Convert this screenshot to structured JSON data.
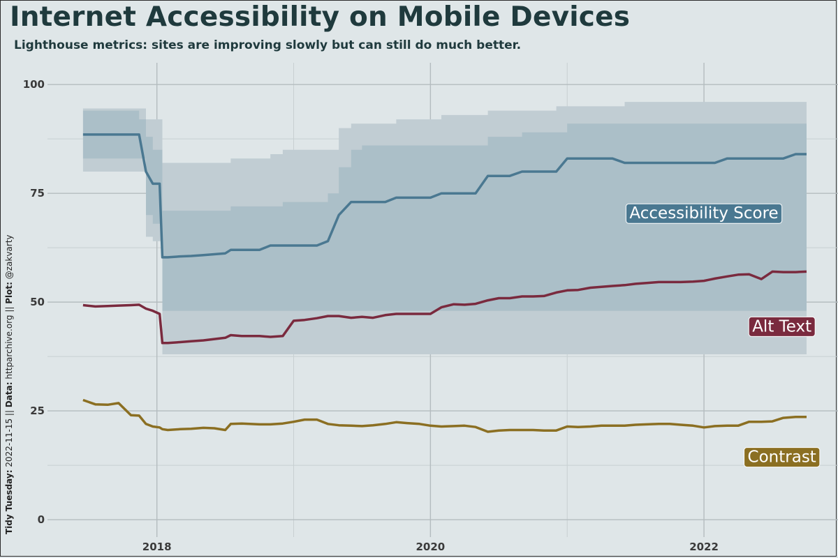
{
  "header": {
    "title": "Internet Accessibility on Mobile Devices",
    "subtitle": "Lighthouse metrics: sites are improving slowly but can still do much better."
  },
  "caption": {
    "tidy_label": "Tidy Tuesday:",
    "tidy_value": " 2022-11-15 || ",
    "data_label": "Data:",
    "data_value": " httparchive.org || ",
    "plot_label": "Plot:",
    "plot_value": " @zakvarty"
  },
  "colors": {
    "background": "#dfe6e8",
    "grid_major": "#b4bcbf",
    "grid_minor": "#c8d0d2",
    "band_outer": "#c1cdd3",
    "band_inner": "#a7bcc6",
    "accessibility": "#4a7891",
    "alt_text": "#7a2a3e",
    "contrast": "#8b6f22"
  },
  "chart_data": {
    "type": "line",
    "title": "Internet Accessibility on Mobile Devices",
    "subtitle": "Lighthouse metrics: sites are improving slowly but can still do much better.",
    "xlabel": "",
    "ylabel": "",
    "xlim": [
      2017.2,
      2022.98
    ],
    "ylim": [
      -4,
      105
    ],
    "y_ticks": [
      0,
      25,
      50,
      75,
      100
    ],
    "x_ticks": [
      2018,
      2020,
      2022
    ],
    "x_tick_labels": [
      "2018",
      "2020",
      "2022"
    ],
    "grid": true,
    "x": [
      2017.46,
      2017.55,
      2017.64,
      2017.72,
      2017.81,
      2017.87,
      2017.92,
      2017.97,
      2018.02,
      2018.04,
      2018.08,
      2018.17,
      2018.25,
      2018.34,
      2018.42,
      2018.5,
      2018.54,
      2018.62,
      2018.75,
      2018.83,
      2018.92,
      2019.0,
      2019.08,
      2019.17,
      2019.25,
      2019.33,
      2019.42,
      2019.5,
      2019.58,
      2019.67,
      2019.75,
      2019.83,
      2019.92,
      2020.0,
      2020.08,
      2020.17,
      2020.25,
      2020.33,
      2020.42,
      2020.5,
      2020.58,
      2020.67,
      2020.75,
      2020.83,
      2020.92,
      2021.0,
      2021.08,
      2021.17,
      2021.25,
      2021.33,
      2021.42,
      2021.5,
      2021.58,
      2021.67,
      2021.75,
      2021.83,
      2021.92,
      2022.0,
      2022.08,
      2022.17,
      2022.25,
      2022.33,
      2022.42,
      2022.5,
      2022.58,
      2022.67,
      2022.75
    ],
    "series": [
      {
        "name": "Accessibility Score",
        "color": "#4a7891",
        "values": [
          88.5,
          88.5,
          88.5,
          88.5,
          88.5,
          88.5,
          80,
          77.2,
          77.2,
          60.3,
          60.3,
          60.5,
          60.6,
          60.8,
          61,
          61.2,
          62,
          62,
          62,
          63,
          63,
          63,
          63,
          63,
          64,
          70,
          73,
          73,
          73,
          73,
          74,
          74,
          74,
          74,
          75,
          75,
          75,
          75,
          79,
          79,
          79,
          80,
          80,
          80,
          80,
          83,
          83,
          83,
          83,
          83,
          82,
          82,
          82,
          82,
          82,
          82,
          82,
          82,
          82,
          83,
          83,
          83,
          83,
          83,
          83,
          84,
          84
        ],
        "p10": [
          80,
          80,
          80,
          80,
          80,
          80,
          65,
          64,
          64,
          38,
          38,
          38,
          38,
          38,
          38,
          38,
          38,
          38,
          38,
          38,
          38,
          38,
          38,
          38,
          38,
          38,
          38,
          38,
          38,
          38,
          38,
          38,
          38,
          38,
          38,
          38,
          38,
          38,
          38,
          38,
          38,
          38,
          38,
          38,
          38,
          38,
          38,
          38,
          38,
          38,
          38,
          38,
          38,
          38,
          38,
          38,
          38,
          38,
          38,
          38,
          38,
          38,
          38,
          38,
          38,
          38,
          38
        ],
        "p25": [
          83,
          83,
          83,
          83,
          83,
          83,
          70,
          68,
          68,
          48,
          48,
          48,
          48,
          48,
          48,
          48,
          48,
          48,
          48,
          48,
          48,
          48,
          48,
          48,
          48,
          48,
          48,
          48,
          48,
          48,
          48,
          48,
          48,
          48,
          48,
          48,
          48,
          48,
          48,
          48,
          48,
          48,
          48,
          48,
          48,
          48,
          48,
          48,
          48,
          48,
          48,
          48,
          48,
          48,
          48,
          48,
          48,
          48,
          48,
          48,
          48,
          48,
          48,
          48,
          48,
          48,
          48
        ],
        "p75": [
          94,
          94,
          94,
          94,
          94,
          92,
          88,
          85,
          85,
          71,
          71,
          71,
          71,
          71,
          71,
          71,
          72,
          72,
          72,
          72,
          73,
          73,
          73,
          73,
          75,
          81,
          85,
          86,
          86,
          86,
          86,
          86,
          86,
          86,
          86,
          86,
          86,
          86,
          88,
          88,
          88,
          89,
          89,
          89,
          89,
          91,
          91,
          91,
          91,
          91,
          91,
          91,
          91,
          91,
          91,
          91,
          91,
          91,
          91,
          91,
          91,
          91,
          91,
          91,
          91,
          91,
          91
        ],
        "p90": [
          94.5,
          94.5,
          94.5,
          94.5,
          94.5,
          94.5,
          92,
          92,
          92,
          82,
          82,
          82,
          82,
          82,
          82,
          82,
          83,
          83,
          83,
          84,
          85,
          85,
          85,
          85,
          85,
          90,
          91,
          91,
          91,
          91,
          92,
          92,
          92,
          92,
          93,
          93,
          93,
          93,
          94,
          94,
          94,
          94,
          94,
          94,
          95,
          95,
          95,
          95,
          95,
          95,
          96,
          96,
          96,
          96,
          96,
          96,
          96,
          96,
          96,
          96,
          96,
          96,
          96,
          96,
          96,
          96,
          96
        ]
      },
      {
        "name": "Alt Text",
        "color": "#7a2a3e",
        "values": [
          49.3,
          49,
          49.1,
          49.2,
          49.3,
          49.4,
          48.5,
          48,
          47.3,
          40.6,
          40.6,
          40.8,
          41,
          41.2,
          41.5,
          41.8,
          42.4,
          42.2,
          42.2,
          42,
          42.2,
          45.7,
          45.9,
          46.3,
          46.8,
          46.8,
          46.4,
          46.6,
          46.4,
          47,
          47.3,
          47.3,
          47.3,
          47.3,
          48.8,
          49.5,
          49.4,
          49.6,
          50.4,
          50.9,
          50.9,
          51.3,
          51.3,
          51.4,
          52.2,
          52.7,
          52.8,
          53.3,
          53.5,
          53.7,
          53.9,
          54.2,
          54.4,
          54.6,
          54.6,
          54.6,
          54.7,
          54.9,
          55.4,
          55.9,
          56.3,
          56.4,
          55.3,
          57,
          56.9,
          56.9,
          57
        ]
      },
      {
        "name": "Contrast",
        "color": "#8b6f22",
        "values": [
          27.5,
          26.5,
          26.4,
          26.8,
          24,
          23.9,
          22,
          21.4,
          21.2,
          20.8,
          20.6,
          20.8,
          20.9,
          21.1,
          21,
          20.6,
          22,
          22.1,
          21.9,
          21.9,
          22.1,
          22.5,
          23,
          23,
          22,
          21.7,
          21.6,
          21.5,
          21.7,
          22,
          22.4,
          22.2,
          22,
          21.6,
          21.4,
          21.5,
          21.6,
          21.3,
          20.2,
          20.5,
          20.6,
          20.6,
          20.6,
          20.5,
          20.5,
          21.4,
          21.3,
          21.4,
          21.6,
          21.6,
          21.6,
          21.8,
          21.9,
          22,
          22,
          21.8,
          21.6,
          21.2,
          21.5,
          21.6,
          21.6,
          22.5,
          22.5,
          22.6,
          23.4,
          23.6,
          23.6
        ]
      }
    ],
    "series_labels": [
      "Accessibility Score",
      "Alt Text",
      "Contrast"
    ]
  }
}
